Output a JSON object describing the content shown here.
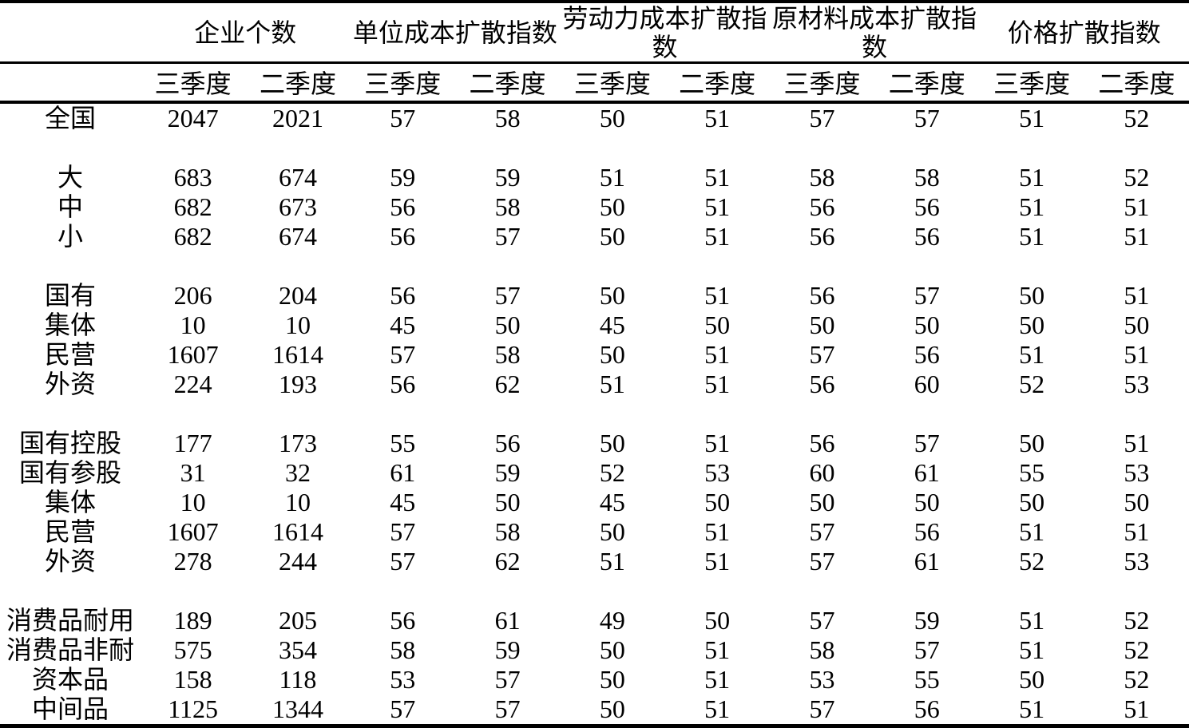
{
  "table": {
    "column_groups": [
      "企业个数",
      "单位成本扩散指数",
      "劳动力成本扩散指数",
      "原材料成本扩散指数",
      "价格扩散指数"
    ],
    "subheaders": [
      "三季度",
      "二季度"
    ],
    "sections": [
      {
        "rows": [
          {
            "label": "全国",
            "values": [
              2047,
              2021,
              57,
              58,
              50,
              51,
              57,
              57,
              51,
              52
            ]
          }
        ]
      },
      {
        "rows": [
          {
            "label": "大",
            "values": [
              683,
              674,
              59,
              59,
              51,
              51,
              58,
              58,
              51,
              52
            ]
          },
          {
            "label": "中",
            "values": [
              682,
              673,
              56,
              58,
              50,
              51,
              56,
              56,
              51,
              51
            ]
          },
          {
            "label": "小",
            "values": [
              682,
              674,
              56,
              57,
              50,
              51,
              56,
              56,
              51,
              51
            ]
          }
        ]
      },
      {
        "rows": [
          {
            "label": "国有",
            "values": [
              206,
              204,
              56,
              57,
              50,
              51,
              56,
              57,
              50,
              51
            ]
          },
          {
            "label": "集体",
            "values": [
              10,
              10,
              45,
              50,
              45,
              50,
              50,
              50,
              50,
              50
            ]
          },
          {
            "label": "民营",
            "values": [
              1607,
              1614,
              57,
              58,
              50,
              51,
              57,
              56,
              51,
              51
            ]
          },
          {
            "label": "外资",
            "values": [
              224,
              193,
              56,
              62,
              51,
              51,
              56,
              60,
              52,
              53
            ]
          }
        ]
      },
      {
        "rows": [
          {
            "label": "国有控股",
            "values": [
              177,
              173,
              55,
              56,
              50,
              51,
              56,
              57,
              50,
              51
            ]
          },
          {
            "label": "国有参股",
            "values": [
              31,
              32,
              61,
              59,
              52,
              53,
              60,
              61,
              55,
              53
            ]
          },
          {
            "label": "集体",
            "values": [
              10,
              10,
              45,
              50,
              45,
              50,
              50,
              50,
              50,
              50
            ]
          },
          {
            "label": "民营",
            "values": [
              1607,
              1614,
              57,
              58,
              50,
              51,
              57,
              56,
              51,
              51
            ]
          },
          {
            "label": "外资",
            "values": [
              278,
              244,
              57,
              62,
              51,
              51,
              57,
              61,
              52,
              53
            ]
          }
        ]
      },
      {
        "rows": [
          {
            "label": "消费品耐用",
            "values": [
              189,
              205,
              56,
              61,
              49,
              50,
              57,
              59,
              51,
              52
            ]
          },
          {
            "label": "消费品非耐",
            "values": [
              575,
              354,
              58,
              59,
              50,
              51,
              58,
              57,
              51,
              52
            ]
          },
          {
            "label": "资本品",
            "values": [
              158,
              118,
              53,
              57,
              50,
              51,
              53,
              55,
              50,
              52
            ]
          },
          {
            "label": "中间品",
            "values": [
              1125,
              1344,
              57,
              57,
              50,
              51,
              57,
              56,
              51,
              51
            ]
          }
        ]
      }
    ]
  }
}
